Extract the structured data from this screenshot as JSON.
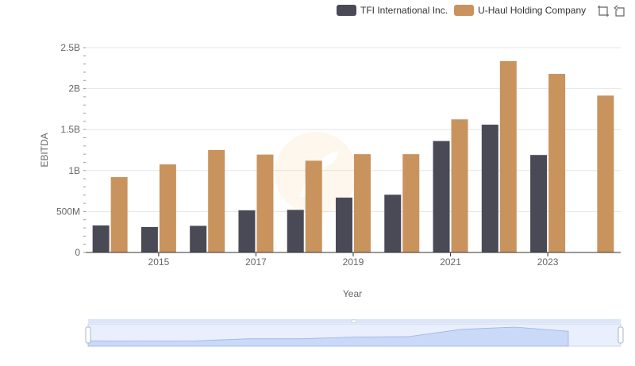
{
  "legend": {
    "items": [
      {
        "label": "TFI International Inc.",
        "color": "#4a4a57"
      },
      {
        "label": "U-Haul Holding Company",
        "color": "#c9935e"
      }
    ]
  },
  "toolbox": {
    "icons": [
      "zoom-icon",
      "restore-icon"
    ]
  },
  "chart_data": {
    "type": "bar",
    "xlabel": "Year",
    "ylabel": "EBITDA",
    "ylim": [
      0,
      2500000000
    ],
    "yticks": [
      {
        "value": 0,
        "label": "0"
      },
      {
        "value": 500000000,
        "label": "500M"
      },
      {
        "value": 1000000000,
        "label": "1B"
      },
      {
        "value": 1500000000,
        "label": "1.5B"
      },
      {
        "value": 2000000000,
        "label": "2B"
      },
      {
        "value": 2500000000,
        "label": "2.5B"
      }
    ],
    "categories": [
      "2014",
      "2015",
      "2016",
      "2017",
      "2018",
      "2019",
      "2020",
      "2021",
      "2022",
      "2023",
      "2024"
    ],
    "xtick_labels": [
      "2015",
      "2017",
      "2019",
      "2021",
      "2023"
    ],
    "grid": true,
    "legend_position": "top-right",
    "series": [
      {
        "name": "TFI International Inc.",
        "color": "#4a4a57",
        "values": [
          330000000,
          310000000,
          325000000,
          515000000,
          520000000,
          670000000,
          705000000,
          1360000000,
          1560000000,
          1190000000,
          null
        ]
      },
      {
        "name": "U-Haul Holding Company",
        "color": "#c9935e",
        "values": [
          920000000,
          1075000000,
          1250000000,
          1195000000,
          1120000000,
          1200000000,
          1200000000,
          1625000000,
          2335000000,
          2180000000,
          1915000000
        ]
      }
    ]
  }
}
